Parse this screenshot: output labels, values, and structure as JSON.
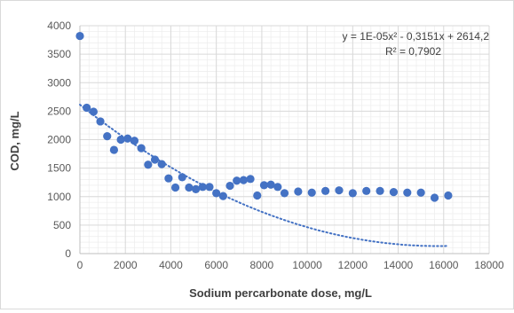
{
  "chart_data": {
    "type": "scatter",
    "xlabel": "Sodium percarbonate dose, mg/L",
    "ylabel": "COD, mg/L",
    "xlim": [
      0,
      18000
    ],
    "ylim": [
      0,
      4000
    ],
    "xticks": [
      0,
      2000,
      4000,
      6000,
      8000,
      10000,
      12000,
      14000,
      16000,
      18000
    ],
    "yticks": [
      0,
      500,
      1000,
      1500,
      2000,
      2500,
      3000,
      3500,
      4000
    ],
    "grid": true,
    "marker_color": "#4472c4",
    "trendline": {
      "type": "polynomial",
      "coefficients": [
        1e-05,
        -0.3151,
        2614.2
      ],
      "x_range": [
        0,
        16200
      ],
      "style": "dotted",
      "equation_label": "y = 1E-05x² - 0,3151x + 2614,2",
      "r2_label": "R² = 0,7902"
    },
    "points": [
      [
        0,
        3820
      ],
      [
        300,
        2560
      ],
      [
        600,
        2490
      ],
      [
        900,
        2320
      ],
      [
        1200,
        2060
      ],
      [
        1500,
        1820
      ],
      [
        1800,
        2000
      ],
      [
        2100,
        2020
      ],
      [
        2400,
        1980
      ],
      [
        2700,
        1850
      ],
      [
        3000,
        1560
      ],
      [
        3300,
        1650
      ],
      [
        3600,
        1570
      ],
      [
        3900,
        1320
      ],
      [
        4200,
        1160
      ],
      [
        4500,
        1340
      ],
      [
        4800,
        1160
      ],
      [
        5100,
        1130
      ],
      [
        5400,
        1170
      ],
      [
        5700,
        1170
      ],
      [
        6000,
        1060
      ],
      [
        6300,
        1010
      ],
      [
        6600,
        1190
      ],
      [
        6900,
        1280
      ],
      [
        7200,
        1290
      ],
      [
        7500,
        1310
      ],
      [
        7800,
        1020
      ],
      [
        8100,
        1200
      ],
      [
        8400,
        1210
      ],
      [
        8700,
        1170
      ],
      [
        9000,
        1060
      ],
      [
        9600,
        1090
      ],
      [
        10200,
        1070
      ],
      [
        10800,
        1100
      ],
      [
        11400,
        1110
      ],
      [
        12000,
        1060
      ],
      [
        12600,
        1100
      ],
      [
        13200,
        1100
      ],
      [
        13800,
        1080
      ],
      [
        14400,
        1070
      ],
      [
        15000,
        1070
      ],
      [
        15600,
        980
      ],
      [
        16200,
        1020
      ]
    ]
  }
}
